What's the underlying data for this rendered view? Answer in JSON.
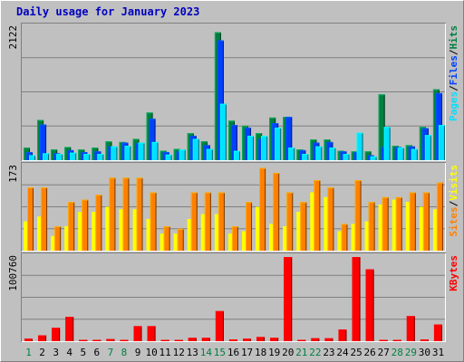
{
  "title": "Daily usage for January 2023",
  "colors": {
    "pages": "#00e0ff",
    "files": "#0040ff",
    "hits": "#008040",
    "visits": "#ffff00",
    "sites": "#ff8000",
    "kbytes": "#ff0000",
    "weekend": "#008040",
    "weekday": "#000000",
    "slash": "#000000"
  },
  "chart_data": [
    {
      "type": "bar",
      "panel": "hits-files-pages",
      "y_max_label": "2122",
      "ylim": [
        0,
        2122
      ],
      "right_labels": [
        "Pages",
        "/",
        "Files",
        "/",
        "Hits"
      ],
      "categories": [
        "1",
        "2",
        "3",
        "4",
        "5",
        "6",
        "7",
        "8",
        "9",
        "10",
        "11",
        "12",
        "13",
        "14",
        "15",
        "16",
        "17",
        "18",
        "19",
        "20",
        "21",
        "22",
        "23",
        "24",
        "25",
        "26",
        "27",
        "28",
        "29",
        "30",
        "31"
      ],
      "weekend_days": [
        "1",
        "7",
        "8",
        "14",
        "15",
        "21",
        "22",
        "28",
        "29"
      ],
      "series": [
        {
          "name": "Hits",
          "values": [
            200,
            640,
            170,
            210,
            170,
            200,
            300,
            290,
            340,
            760,
            150,
            180,
            430,
            300,
            2040,
            630,
            550,
            430,
            680,
            690,
            170,
            330,
            330,
            150,
            140,
            140,
            1050,
            230,
            240,
            530,
            1130
          ]
        },
        {
          "name": "Files",
          "values": [
            130,
            570,
            110,
            160,
            130,
            140,
            220,
            280,
            270,
            660,
            130,
            140,
            390,
            240,
            1910,
            560,
            520,
            340,
            590,
            690,
            160,
            280,
            290,
            140,
            130,
            80,
            210,
            210,
            220,
            510,
            1070
          ]
        },
        {
          "name": "Pages",
          "values": [
            80,
            110,
            100,
            120,
            100,
            100,
            220,
            230,
            280,
            290,
            90,
            170,
            340,
            180,
            900,
            150,
            390,
            390,
            520,
            200,
            100,
            220,
            200,
            100,
            440,
            60,
            530,
            200,
            180,
            400,
            560
          ]
        }
      ]
    },
    {
      "type": "bar",
      "panel": "visits-sites",
      "y_max_label": "173",
      "ylim": [
        0,
        173
      ],
      "right_labels": [
        "Sites",
        "/",
        "Visits"
      ],
      "categories": [
        "1",
        "2",
        "3",
        "4",
        "5",
        "6",
        "7",
        "8",
        "9",
        "10",
        "11",
        "12",
        "13",
        "14",
        "15",
        "16",
        "17",
        "18",
        "19",
        "20",
        "21",
        "22",
        "23",
        "24",
        "25",
        "26",
        "27",
        "28",
        "29",
        "30",
        "31"
      ],
      "weekend_days": [
        "1",
        "7",
        "8",
        "14",
        "15",
        "21",
        "22",
        "28",
        "29"
      ],
      "series": [
        {
          "name": "Visits",
          "values": [
            60,
            70,
            30,
            50,
            80,
            80,
            90,
            85,
            85,
            65,
            35,
            35,
            65,
            75,
            75,
            35,
            40,
            90,
            55,
            50,
            80,
            120,
            110,
            40,
            55,
            60,
            95,
            105,
            100,
            90,
            85
          ]
        },
        {
          "name": "Sites",
          "values": [
            130,
            130,
            50,
            100,
            105,
            115,
            150,
            150,
            150,
            120,
            50,
            45,
            120,
            120,
            120,
            50,
            100,
            170,
            160,
            120,
            100,
            145,
            130,
            55,
            145,
            100,
            110,
            110,
            120,
            120,
            140
          ]
        }
      ]
    },
    {
      "type": "bar",
      "panel": "kbytes",
      "y_max_label": "100760",
      "ylim": [
        0,
        100760
      ],
      "right_labels": [
        "KBytes"
      ],
      "categories": [
        "1",
        "2",
        "3",
        "4",
        "5",
        "6",
        "7",
        "8",
        "9",
        "10",
        "11",
        "12",
        "13",
        "14",
        "15",
        "16",
        "17",
        "18",
        "19",
        "20",
        "21",
        "22",
        "23",
        "24",
        "25",
        "26",
        "27",
        "28",
        "29",
        "30",
        "31"
      ],
      "weekend_days": [
        "1",
        "7",
        "8",
        "14",
        "15",
        "21",
        "22",
        "28",
        "29"
      ],
      "series": [
        {
          "name": "KBytes",
          "values": [
            3000,
            7000,
            16000,
            29000,
            1500,
            1500,
            2500,
            1500,
            18000,
            18000,
            1500,
            1500,
            4000,
            4000,
            36000,
            2000,
            3000,
            5000,
            4000,
            100760,
            1500,
            3500,
            3500,
            14000,
            100760,
            86000,
            1500,
            1500,
            30000,
            2000,
            20000
          ]
        }
      ]
    }
  ]
}
